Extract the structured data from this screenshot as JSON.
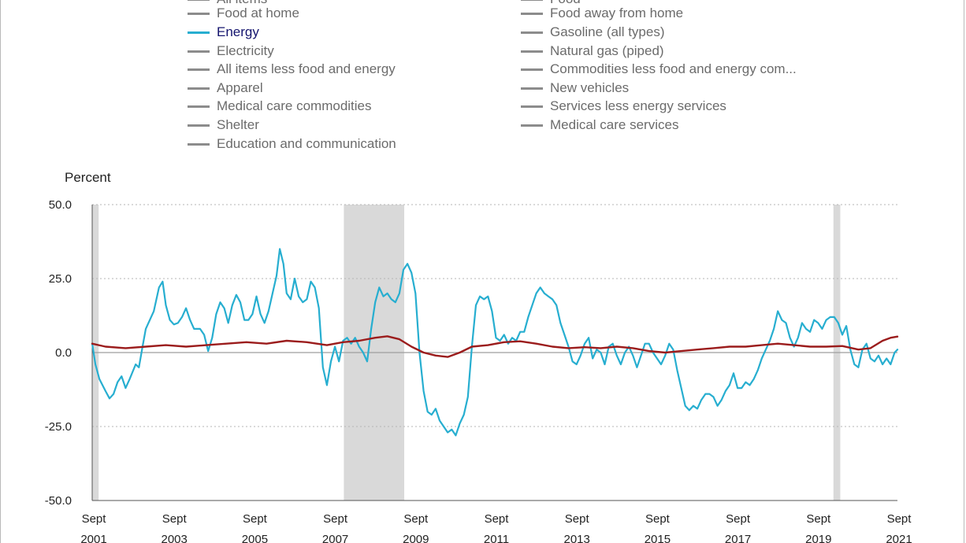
{
  "legend": {
    "partial_top_left": "All items",
    "partial_top_right": "Food",
    "left": [
      "Food at home",
      "Energy",
      "Electricity",
      "All items less food and energy",
      "Apparel",
      "Medical care commodities",
      "Shelter",
      "Education and communication"
    ],
    "right": [
      "Food away from home",
      "Gasoline (all types)",
      "Natural gas (piped)",
      "Commodities less food and energy com...",
      "New vehicles",
      "Services less energy services",
      "Medical care services"
    ],
    "active": "Energy"
  },
  "colors": {
    "energy": "#27aed0",
    "all_items": "#9b1c1c",
    "recession": "#d9d9d9",
    "grid": "#b5b5b5"
  },
  "chart_data": {
    "type": "line",
    "ylabel": "Percent",
    "ylim": [
      -50,
      50
    ],
    "yticks": [
      "50.0",
      "25.0",
      "0.0",
      "-25.0",
      "-50.0"
    ],
    "xlim": [
      2001.67,
      2021.67
    ],
    "xticks": [
      {
        "month": "Sept",
        "year": "2001"
      },
      {
        "month": "Sept",
        "year": "2003"
      },
      {
        "month": "Sept",
        "year": "2005"
      },
      {
        "month": "Sept",
        "year": "2007"
      },
      {
        "month": "Sept",
        "year": "2009"
      },
      {
        "month": "Sept",
        "year": "2011"
      },
      {
        "month": "Sept",
        "year": "2013"
      },
      {
        "month": "Sept",
        "year": "2015"
      },
      {
        "month": "Sept",
        "year": "2017"
      },
      {
        "month": "Sept",
        "year": "2019"
      },
      {
        "month": "Sept",
        "year": "2021"
      }
    ],
    "recessions": [
      [
        2001.67,
        2001.83
      ],
      [
        2007.92,
        2009.42
      ],
      [
        2020.08,
        2020.25
      ]
    ],
    "grid": "horizontal dotted",
    "series": [
      {
        "name": "Energy",
        "points": [
          [
            2001.67,
            3
          ],
          [
            2001.75,
            -4
          ],
          [
            2001.85,
            -9
          ],
          [
            2002.0,
            -13
          ],
          [
            2002.1,
            -15.5
          ],
          [
            2002.2,
            -14
          ],
          [
            2002.3,
            -10
          ],
          [
            2002.4,
            -8
          ],
          [
            2002.5,
            -12
          ],
          [
            2002.6,
            -9
          ],
          [
            2002.75,
            -4
          ],
          [
            2002.83,
            -5
          ],
          [
            2002.92,
            2
          ],
          [
            2003.0,
            8
          ],
          [
            2003.2,
            14
          ],
          [
            2003.33,
            22
          ],
          [
            2003.42,
            24
          ],
          [
            2003.5,
            16
          ],
          [
            2003.6,
            11
          ],
          [
            2003.7,
            9.5
          ],
          [
            2003.8,
            10
          ],
          [
            2003.9,
            12
          ],
          [
            2004.0,
            15
          ],
          [
            2004.1,
            11
          ],
          [
            2004.2,
            8
          ],
          [
            2004.35,
            8
          ],
          [
            2004.45,
            6
          ],
          [
            2004.55,
            0.5
          ],
          [
            2004.65,
            5
          ],
          [
            2004.75,
            13
          ],
          [
            2004.85,
            17
          ],
          [
            2004.95,
            15
          ],
          [
            2005.05,
            10
          ],
          [
            2005.15,
            16
          ],
          [
            2005.25,
            19.5
          ],
          [
            2005.35,
            17
          ],
          [
            2005.45,
            11
          ],
          [
            2005.55,
            11
          ],
          [
            2005.65,
            13
          ],
          [
            2005.75,
            19
          ],
          [
            2005.85,
            13
          ],
          [
            2005.95,
            10
          ],
          [
            2006.05,
            14
          ],
          [
            2006.15,
            20
          ],
          [
            2006.25,
            26
          ],
          [
            2006.33,
            35
          ],
          [
            2006.42,
            30
          ],
          [
            2006.5,
            20
          ],
          [
            2006.6,
            18
          ],
          [
            2006.7,
            25
          ],
          [
            2006.8,
            19
          ],
          [
            2006.9,
            17
          ],
          [
            2007.0,
            18
          ],
          [
            2007.1,
            24
          ],
          [
            2007.2,
            22
          ],
          [
            2007.3,
            15
          ],
          [
            2007.4,
            -5
          ],
          [
            2007.5,
            -11
          ],
          [
            2007.6,
            -3
          ],
          [
            2007.7,
            2
          ],
          [
            2007.8,
            -3
          ],
          [
            2007.9,
            4
          ],
          [
            2008.0,
            5
          ],
          [
            2008.1,
            3
          ],
          [
            2008.2,
            5
          ],
          [
            2008.3,
            2
          ],
          [
            2008.4,
            0
          ],
          [
            2008.5,
            -3
          ],
          [
            2008.6,
            8
          ],
          [
            2008.7,
            17
          ],
          [
            2008.8,
            22
          ],
          [
            2008.9,
            19
          ],
          [
            2009.0,
            20
          ],
          [
            2009.1,
            18
          ],
          [
            2009.2,
            17
          ],
          [
            2009.3,
            20
          ],
          [
            2009.4,
            28
          ],
          [
            2009.5,
            30
          ],
          [
            2009.6,
            27
          ],
          [
            2009.7,
            20
          ],
          [
            2009.8,
            0
          ],
          [
            2009.9,
            -13
          ],
          [
            2010.0,
            -20
          ],
          [
            2010.1,
            -21
          ],
          [
            2010.2,
            -19
          ],
          [
            2010.3,
            -23
          ],
          [
            2010.4,
            -25
          ],
          [
            2010.5,
            -27
          ],
          [
            2010.6,
            -26
          ],
          [
            2010.7,
            -28
          ],
          [
            2010.8,
            -24
          ],
          [
            2010.9,
            -21
          ],
          [
            2011.0,
            -15
          ],
          [
            2011.1,
            2
          ],
          [
            2011.2,
            16
          ],
          [
            2011.3,
            19
          ],
          [
            2011.4,
            18
          ],
          [
            2011.5,
            19
          ],
          [
            2011.6,
            14
          ],
          [
            2011.7,
            5
          ],
          [
            2011.8,
            4
          ],
          [
            2011.9,
            6
          ],
          [
            2012.0,
            3
          ],
          [
            2012.1,
            5
          ],
          [
            2012.2,
            4
          ],
          [
            2012.3,
            7
          ],
          [
            2012.4,
            7
          ],
          [
            2012.5,
            12
          ],
          [
            2012.6,
            16
          ],
          [
            2012.7,
            20
          ],
          [
            2012.8,
            22
          ],
          [
            2012.9,
            20
          ],
          [
            2013.0,
            19
          ],
          [
            2013.1,
            18
          ],
          [
            2013.2,
            16
          ],
          [
            2013.3,
            10
          ],
          [
            2013.4,
            6
          ],
          [
            2013.5,
            2
          ],
          [
            2013.6,
            -3
          ],
          [
            2013.7,
            -4
          ],
          [
            2013.8,
            -1
          ],
          [
            2013.9,
            3
          ],
          [
            2014.0,
            5
          ],
          [
            2014.1,
            -2
          ],
          [
            2014.2,
            1
          ],
          [
            2014.3,
            0
          ],
          [
            2014.4,
            -4
          ],
          [
            2014.5,
            2
          ],
          [
            2014.6,
            3
          ],
          [
            2014.7,
            -1
          ],
          [
            2014.8,
            -4
          ],
          [
            2014.9,
            0
          ],
          [
            2015.0,
            2
          ],
          [
            2015.1,
            -1
          ],
          [
            2015.2,
            -5
          ],
          [
            2015.3,
            -1
          ],
          [
            2015.4,
            3
          ],
          [
            2015.5,
            3
          ],
          [
            2015.6,
            0
          ],
          [
            2015.7,
            -2
          ],
          [
            2015.8,
            -4
          ],
          [
            2015.9,
            -1
          ],
          [
            2016.0,
            3
          ],
          [
            2016.1,
            1
          ],
          [
            2016.2,
            -6
          ],
          [
            2016.3,
            -12
          ],
          [
            2016.4,
            -18
          ],
          [
            2016.5,
            -19.5
          ],
          [
            2016.6,
            -18
          ],
          [
            2016.7,
            -19
          ],
          [
            2016.8,
            -16
          ],
          [
            2016.9,
            -14
          ],
          [
            2017.0,
            -14
          ],
          [
            2017.1,
            -15
          ],
          [
            2017.2,
            -18
          ],
          [
            2017.3,
            -16
          ],
          [
            2017.4,
            -13
          ],
          [
            2017.5,
            -11
          ],
          [
            2017.6,
            -7
          ],
          [
            2017.7,
            -12
          ],
          [
            2017.8,
            -12
          ],
          [
            2017.9,
            -10
          ],
          [
            2018.0,
            -11
          ],
          [
            2018.1,
            -9
          ],
          [
            2018.2,
            -6
          ],
          [
            2018.3,
            -2
          ],
          [
            2018.4,
            1
          ],
          [
            2018.5,
            4
          ],
          [
            2018.6,
            8
          ],
          [
            2018.7,
            14
          ],
          [
            2018.8,
            11
          ],
          [
            2018.9,
            10
          ],
          [
            2019.0,
            5
          ],
          [
            2019.1,
            2
          ],
          [
            2019.2,
            5
          ],
          [
            2019.3,
            10
          ],
          [
            2019.4,
            8
          ],
          [
            2019.5,
            7
          ],
          [
            2019.6,
            11
          ],
          [
            2019.7,
            10
          ],
          [
            2019.8,
            8
          ],
          [
            2019.9,
            11
          ],
          [
            2020.0,
            12
          ],
          [
            2020.1,
            12
          ],
          [
            2020.2,
            10
          ],
          [
            2020.3,
            6
          ],
          [
            2020.4,
            9
          ],
          [
            2020.5,
            1
          ],
          [
            2020.6,
            -4
          ],
          [
            2020.7,
            -5
          ],
          [
            2020.8,
            1
          ],
          [
            2020.9,
            3
          ],
          [
            2021.0,
            -2
          ],
          [
            2021.1,
            -3
          ],
          [
            2021.2,
            -1
          ],
          [
            2021.3,
            -4
          ],
          [
            2021.4,
            -2
          ],
          [
            2021.5,
            -4
          ],
          [
            2021.6,
            0
          ],
          [
            2021.67,
            1
          ]
        ]
      },
      {
        "name": "All items",
        "points": [
          [
            2001.67,
            3
          ],
          [
            2002.0,
            2
          ],
          [
            2002.5,
            1.5
          ],
          [
            2003.0,
            2
          ],
          [
            2003.5,
            2.5
          ],
          [
            2004.0,
            2
          ],
          [
            2004.5,
            2.5
          ],
          [
            2005.0,
            3
          ],
          [
            2005.5,
            3.5
          ],
          [
            2006.0,
            3
          ],
          [
            2006.5,
            4
          ],
          [
            2007.0,
            3.5
          ],
          [
            2007.5,
            2.5
          ],
          [
            2007.9,
            3.5
          ],
          [
            2008.3,
            4
          ],
          [
            2008.7,
            5
          ],
          [
            2009.0,
            5.5
          ],
          [
            2009.3,
            4.5
          ],
          [
            2009.6,
            2
          ],
          [
            2009.9,
            0
          ],
          [
            2010.2,
            -1
          ],
          [
            2010.5,
            -1.5
          ],
          [
            2010.8,
            0
          ],
          [
            2011.1,
            2
          ],
          [
            2011.5,
            2.5
          ],
          [
            2011.9,
            3.5
          ],
          [
            2012.3,
            3.8
          ],
          [
            2012.7,
            3
          ],
          [
            2013.1,
            2
          ],
          [
            2013.5,
            1.5
          ],
          [
            2013.9,
            1.8
          ],
          [
            2014.3,
            1.5
          ],
          [
            2014.7,
            2
          ],
          [
            2015.1,
            1.5
          ],
          [
            2015.5,
            0.5
          ],
          [
            2015.9,
            0
          ],
          [
            2016.3,
            0.5
          ],
          [
            2016.7,
            1
          ],
          [
            2017.1,
            1.5
          ],
          [
            2017.5,
            2
          ],
          [
            2017.9,
            2
          ],
          [
            2018.3,
            2.5
          ],
          [
            2018.7,
            3
          ],
          [
            2019.1,
            2.5
          ],
          [
            2019.5,
            2
          ],
          [
            2019.9,
            2
          ],
          [
            2020.3,
            2.2
          ],
          [
            2020.7,
            1
          ],
          [
            2021.0,
            1.5
          ],
          [
            2021.3,
            4
          ],
          [
            2021.5,
            5
          ],
          [
            2021.67,
            5.4
          ]
        ]
      }
    ]
  }
}
